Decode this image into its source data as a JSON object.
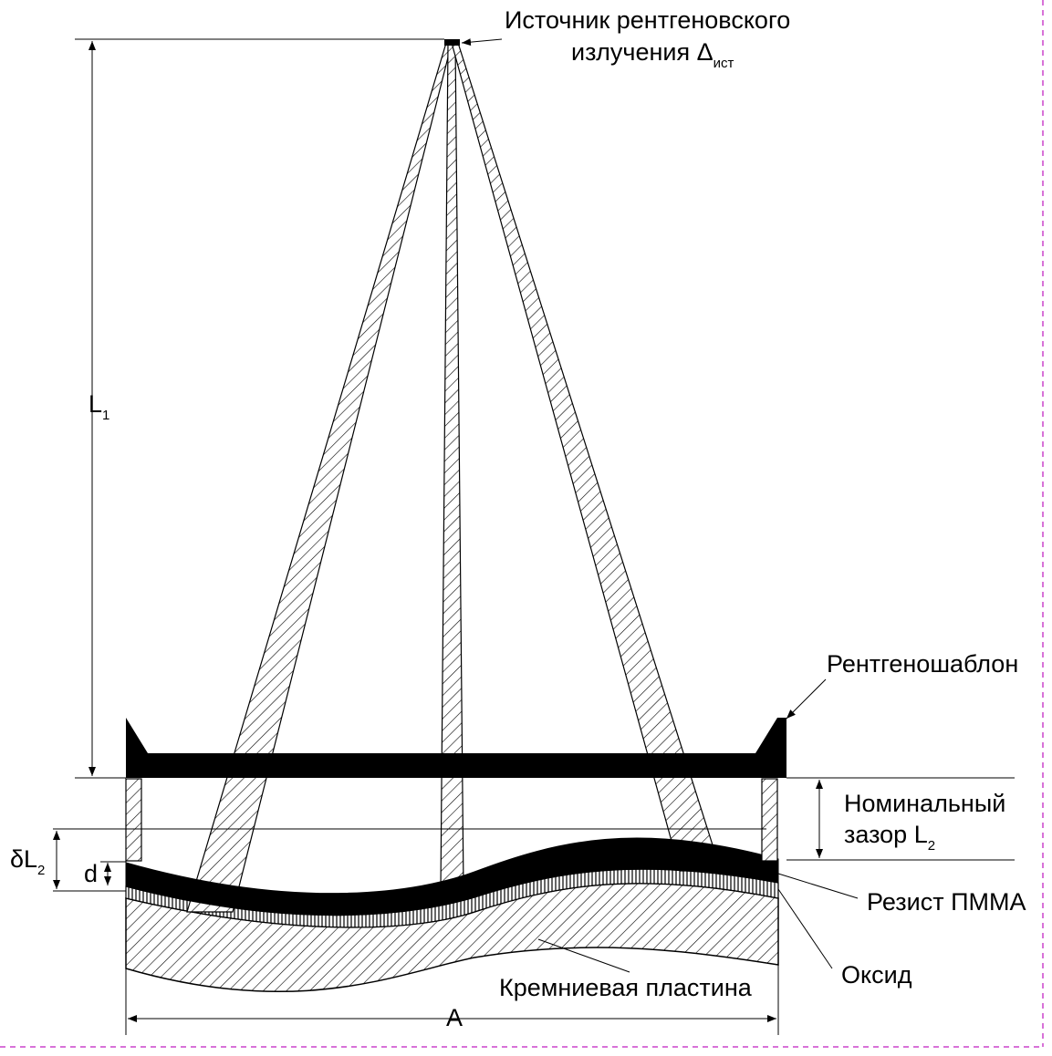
{
  "source_label": {
    "line1": "Источник рентгеновского",
    "line2": "излучения Δ",
    "subscript": "ист"
  },
  "mask_label": "Рентгеношаблон",
  "gap_label": {
    "line1": "Номинальный",
    "line2": "зазор L",
    "subscript": "2"
  },
  "resist_label": "Резист ПММА",
  "oxide_label": "Оксид",
  "wafer_label": "Кремниевая пластина",
  "dim_L1": {
    "main": "L",
    "subscript": "1"
  },
  "dim_dL2": {
    "main": "δL",
    "subscript": "2"
  },
  "dim_d": "d",
  "dim_A": "A",
  "colors": {
    "ink": "#000000",
    "background": "#ffffff",
    "border_dash": "#cc44cc"
  }
}
